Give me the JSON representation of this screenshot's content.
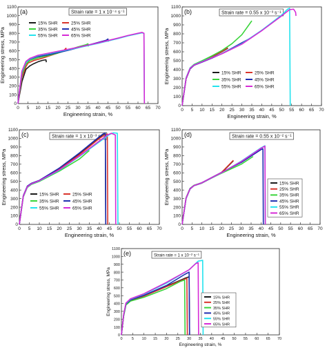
{
  "figure": {
    "colors": {
      "15% SHR": "#1a1a1a",
      "25% SHR": "#d9342b",
      "35% SHR": "#39d43a",
      "45% SHR": "#1f2fb0",
      "55% SHR": "#22e3ee",
      "65% SHR": "#d62ad6"
    }
  },
  "chart_data": [
    {
      "id": "a",
      "panel_label": "(a)",
      "type": "line",
      "strain_rate_label": "Strain rate = 1 x 10⁻⁴ s⁻¹",
      "xlabel": "Engineering strain, %",
      "ylabel": "Engineering stress, MPa",
      "xlim": [
        0,
        70
      ],
      "ylim": [
        0,
        1100
      ],
      "xticks": [
        0,
        5,
        10,
        15,
        20,
        25,
        30,
        35,
        40,
        45,
        50,
        55,
        60,
        65,
        70
      ],
      "yticks": [
        0,
        100,
        200,
        300,
        400,
        500,
        600,
        700,
        800,
        900,
        1000,
        1100
      ],
      "legend_position": "upper-left",
      "legend_columns": 2,
      "series": [
        {
          "name": "15% SHR",
          "x": [
            0,
            2,
            4,
            6,
            8,
            10,
            12,
            13,
            14,
            14.2
          ],
          "y": [
            0,
            250,
            390,
            430,
            455,
            475,
            490,
            495,
            498,
            470
          ]
        },
        {
          "name": "25% SHR",
          "x": [
            0,
            2,
            4,
            5,
            8,
            12,
            16,
            20,
            23,
            24,
            24.2
          ],
          "y": [
            0,
            300,
            420,
            460,
            490,
            515,
            545,
            575,
            605,
            630,
            600
          ]
        },
        {
          "name": "35% SHR",
          "x": [
            0,
            2,
            4,
            6,
            10,
            15,
            20,
            25,
            30,
            34,
            35,
            35.2
          ],
          "y": [
            0,
            330,
            450,
            490,
            520,
            545,
            575,
            610,
            645,
            670,
            680,
            650
          ]
        },
        {
          "name": "45% SHR",
          "x": [
            0,
            2,
            4,
            6,
            10,
            15,
            20,
            25,
            30,
            35,
            40,
            44,
            45,
            45.2
          ],
          "y": [
            0,
            360,
            470,
            505,
            535,
            555,
            580,
            605,
            635,
            665,
            695,
            720,
            735,
            705
          ]
        },
        {
          "name": "55% SHR",
          "x": [
            0,
            2,
            4,
            6,
            10,
            20,
            30,
            40,
            50,
            55,
            60,
            62,
            63,
            63.2
          ],
          "y": [
            0,
            360,
            470,
            510,
            545,
            590,
            635,
            685,
            740,
            770,
            795,
            805,
            800,
            0
          ]
        },
        {
          "name": "65% SHR",
          "x": [
            0,
            2,
            4,
            6,
            10,
            20,
            30,
            40,
            50,
            55,
            60,
            62,
            63,
            63.2
          ],
          "y": [
            0,
            370,
            480,
            515,
            550,
            595,
            640,
            690,
            745,
            775,
            800,
            810,
            800,
            0
          ]
        }
      ]
    },
    {
      "id": "b",
      "panel_label": "(b)",
      "type": "line",
      "strain_rate_label": "Strain rate = 0.55 x 10⁻³ s⁻¹",
      "xlabel": "Engineering strain, %",
      "ylabel": "Engineering stress, MPa",
      "xlim": [
        0,
        70
      ],
      "ylim": [
        0,
        1100
      ],
      "xticks": [
        0,
        5,
        10,
        15,
        20,
        25,
        30,
        35,
        40,
        45,
        50,
        55,
        60,
        65,
        70
      ],
      "yticks": [
        0,
        100,
        200,
        300,
        400,
        500,
        600,
        700,
        800,
        900,
        1000,
        1100
      ],
      "legend_position": "center-left",
      "legend_columns": 2,
      "series": [
        {
          "name": "15% SHR",
          "x": [
            0,
            2,
            4,
            6,
            10,
            15,
            20,
            23
          ],
          "y": [
            0,
            300,
            410,
            450,
            490,
            545,
            600,
            640
          ]
        },
        {
          "name": "25% SHR",
          "x": [
            0,
            2,
            4,
            6,
            10,
            15,
            20,
            23
          ],
          "y": [
            0,
            305,
            412,
            452,
            492,
            548,
            603,
            645
          ]
        },
        {
          "name": "35% SHR",
          "x": [
            0,
            2,
            4,
            6,
            10,
            15,
            20,
            25,
            30,
            35
          ],
          "y": [
            0,
            310,
            420,
            460,
            500,
            555,
            615,
            690,
            790,
            945
          ]
        },
        {
          "name": "45% SHR",
          "x": [
            0,
            2,
            4,
            6,
            10,
            15,
            20,
            25,
            30,
            35
          ],
          "y": [
            0,
            300,
            410,
            450,
            485,
            530,
            580,
            640,
            700,
            760
          ]
        },
        {
          "name": "55% SHR",
          "x": [
            0,
            2,
            4,
            6,
            10,
            20,
            30,
            40,
            50,
            53,
            54,
            54.3
          ],
          "y": [
            0,
            310,
            420,
            455,
            490,
            580,
            690,
            840,
            1010,
            1075,
            1085,
            0
          ]
        },
        {
          "name": "65% SHR",
          "x": [
            0,
            2,
            4,
            6,
            10,
            20,
            30,
            40,
            50,
            54,
            56,
            57,
            57.2
          ],
          "y": [
            0,
            305,
            415,
            452,
            488,
            578,
            685,
            835,
            1000,
            1070,
            1075,
            1040,
            1000
          ]
        }
      ]
    },
    {
      "id": "c",
      "panel_label": "(c)",
      "type": "line",
      "strain_rate_label": "Strain rate = 1 x 10⁻³ s⁻¹",
      "xlabel": "Engineering strain, %",
      "ylabel": "Engineering stress, MPa",
      "xlim": [
        0,
        70
      ],
      "ylim": [
        0,
        1100
      ],
      "xticks": [
        0,
        5,
        10,
        15,
        20,
        25,
        30,
        35,
        40,
        45,
        50,
        55,
        60,
        65,
        70
      ],
      "yticks": [
        0,
        100,
        200,
        300,
        400,
        500,
        600,
        700,
        800,
        900,
        1000,
        1100
      ],
      "legend_position": "lower-left",
      "legend_columns": 2,
      "series": [
        {
          "name": "15% SHR",
          "x": [
            0,
            2,
            4,
            6,
            10,
            20,
            30,
            40,
            42,
            43,
            43.2
          ],
          "y": [
            0,
            330,
            440,
            475,
            510,
            650,
            820,
            1010,
            1050,
            1055,
            0
          ]
        },
        {
          "name": "25% SHR",
          "x": [
            0,
            2,
            4,
            6,
            10,
            20,
            30,
            40,
            43,
            44,
            44.2
          ],
          "y": [
            0,
            330,
            440,
            475,
            510,
            640,
            810,
            1000,
            1045,
            1050,
            0
          ]
        },
        {
          "name": "35% SHR",
          "x": [
            0,
            2,
            4,
            6,
            10,
            20,
            30,
            35
          ],
          "y": [
            0,
            320,
            430,
            465,
            500,
            620,
            760,
            860
          ]
        },
        {
          "name": "45% SHR",
          "x": [
            0,
            2,
            4,
            6,
            10,
            20,
            30,
            40,
            42,
            43,
            43.2
          ],
          "y": [
            0,
            335,
            445,
            478,
            512,
            655,
            830,
            1020,
            1055,
            1060,
            0
          ]
        },
        {
          "name": "55% SHR",
          "x": [
            0,
            2,
            4,
            6,
            10,
            20,
            30,
            40,
            45,
            47,
            49,
            49.3
          ],
          "y": [
            0,
            325,
            435,
            470,
            505,
            630,
            790,
            960,
            1045,
            1065,
            1060,
            0
          ]
        },
        {
          "name": "65% SHR",
          "x": [
            0,
            2,
            4,
            6,
            10,
            20,
            30,
            40,
            44,
            46,
            48,
            48.2
          ],
          "y": [
            0,
            328,
            438,
            472,
            508,
            635,
            795,
            970,
            1040,
            1060,
            1040,
            0
          ]
        }
      ]
    },
    {
      "id": "d",
      "panel_label": "(d)",
      "type": "line",
      "strain_rate_label": "Strain rate = 0.55 x 10⁻² s⁻¹",
      "xlabel": "Engineering strain, %",
      "ylabel": "Engineering stress, MPa",
      "xlim": [
        0,
        70
      ],
      "ylim": [
        0,
        1100
      ],
      "xticks": [
        0,
        5,
        10,
        15,
        20,
        25,
        30,
        35,
        40,
        45,
        50,
        55,
        60,
        65,
        70
      ],
      "yticks": [
        0,
        100,
        200,
        300,
        400,
        500,
        600,
        700,
        800,
        900,
        1000,
        1100
      ],
      "legend_position": "lower-right",
      "legend_columns": 1,
      "series": [
        {
          "name": "15% SHR",
          "x": [
            0,
            2,
            4,
            6,
            10,
            20,
            26
          ],
          "y": [
            0,
            300,
            410,
            450,
            480,
            600,
            740
          ]
        },
        {
          "name": "25% SHR",
          "x": [
            0,
            2,
            4,
            6,
            10,
            20,
            26
          ],
          "y": [
            0,
            305,
            412,
            452,
            482,
            605,
            745
          ]
        },
        {
          "name": "35% SHR",
          "x": [
            0,
            2,
            4,
            6,
            10,
            20,
            30,
            36
          ],
          "y": [
            0,
            310,
            418,
            455,
            485,
            595,
            700,
            790
          ]
        },
        {
          "name": "45% SHR",
          "x": [
            0,
            2,
            4,
            6,
            10,
            20,
            30,
            40,
            41,
            41.2
          ],
          "y": [
            0,
            305,
            415,
            452,
            485,
            605,
            720,
            870,
            880,
            0
          ]
        },
        {
          "name": "55% SHR",
          "x": [
            0,
            2,
            4,
            6,
            10,
            20,
            30,
            40,
            42,
            42.2
          ],
          "y": [
            0,
            300,
            410,
            450,
            482,
            600,
            735,
            890,
            915,
            0
          ]
        },
        {
          "name": "65% SHR",
          "x": [
            0,
            2,
            4,
            6,
            10,
            20,
            30,
            40,
            42,
            42.2
          ],
          "y": [
            0,
            305,
            412,
            451,
            484,
            602,
            730,
            885,
            910,
            0
          ]
        }
      ]
    },
    {
      "id": "e",
      "panel_label": "(e)",
      "type": "line",
      "strain_rate_label": "Strain rate = 1 x 10⁻² s⁻¹",
      "xlabel": "Engineering strain, %",
      "ylabel": "Engineering stress, MPa",
      "xlim": [
        0,
        70
      ],
      "ylim": [
        0,
        1100
      ],
      "xticks": [
        0,
        5,
        10,
        15,
        20,
        25,
        30,
        35,
        40,
        45,
        50,
        55,
        60,
        65,
        70
      ],
      "yticks": [
        0,
        100,
        200,
        300,
        400,
        500,
        600,
        700,
        800,
        900,
        1000,
        1100
      ],
      "legend_position": "lower-right",
      "legend_columns": 1,
      "series": [
        {
          "name": "15% SHR",
          "x": [
            0,
            1,
            2,
            4,
            10,
            20,
            28,
            30,
            30.2
          ],
          "y": [
            0,
            250,
            390,
            440,
            500,
            620,
            720,
            740,
            0
          ]
        },
        {
          "name": "25% SHR",
          "x": [
            0,
            1,
            2,
            4,
            10,
            20,
            28,
            29,
            29.2
          ],
          "y": [
            0,
            245,
            385,
            435,
            495,
            615,
            710,
            720,
            0
          ]
        },
        {
          "name": "35% SHR",
          "x": [
            0,
            1,
            2,
            4,
            10,
            20,
            26,
            28,
            28.2
          ],
          "y": [
            0,
            240,
            380,
            430,
            480,
            590,
            680,
            700,
            0
          ]
        },
        {
          "name": "45% SHR",
          "x": [
            0,
            1,
            2,
            4,
            10,
            20,
            28,
            30,
            30.2
          ],
          "y": [
            0,
            255,
            395,
            445,
            505,
            630,
            770,
            800,
            0
          ]
        },
        {
          "name": "55% SHR",
          "x": [
            0,
            1,
            2,
            4,
            10,
            20,
            30,
            34,
            36,
            36.2
          ],
          "y": [
            0,
            260,
            400,
            455,
            520,
            660,
            830,
            940,
            950,
            0
          ]
        },
        {
          "name": "65% SHR",
          "x": [
            0,
            1,
            2,
            4,
            10,
            20,
            30,
            33,
            34,
            34.2
          ],
          "y": [
            0,
            262,
            405,
            460,
            525,
            670,
            830,
            910,
            920,
            0
          ]
        }
      ]
    }
  ]
}
